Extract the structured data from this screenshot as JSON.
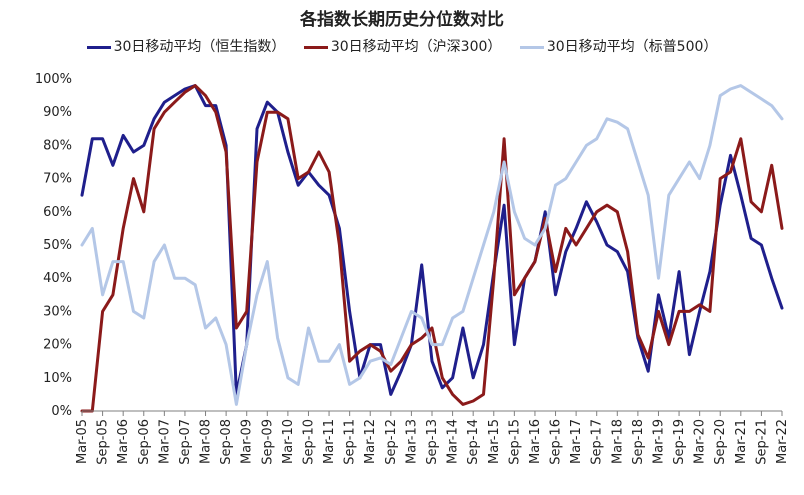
{
  "chart_data": {
    "type": "line",
    "title": "各指数长期历史分位数对比",
    "xlabel": "",
    "ylabel": "",
    "ylim": [
      0,
      100
    ],
    "y_ticks": [
      "0%",
      "10%",
      "20%",
      "30%",
      "40%",
      "50%",
      "60%",
      "70%",
      "80%",
      "90%",
      "100%"
    ],
    "x_tick_labels": [
      "Mar-05",
      "Sep-05",
      "Mar-06",
      "Sep-06",
      "Mar-07",
      "Sep-07",
      "Mar-08",
      "Sep-08",
      "Mar-09",
      "Sep-09",
      "Mar-10",
      "Sep-10",
      "Mar-11",
      "Sep-11",
      "Mar-12",
      "Sep-12",
      "Mar-13",
      "Sep-13",
      "Mar-14",
      "Sep-14",
      "Mar-15",
      "Sep-15",
      "Mar-16",
      "Sep-16",
      "Mar-17",
      "Sep-17",
      "Mar-18",
      "Sep-18",
      "Mar-19",
      "Sep-19",
      "Mar-20",
      "Sep-20",
      "Mar-21",
      "Sep-21",
      "Mar-22"
    ],
    "grid": false,
    "legend_position": "top",
    "x": [
      "2005-03",
      "2005-06",
      "2005-09",
      "2005-12",
      "2006-03",
      "2006-06",
      "2006-09",
      "2006-12",
      "2007-03",
      "2007-06",
      "2007-09",
      "2007-12",
      "2008-03",
      "2008-06",
      "2008-09",
      "2008-12",
      "2009-03",
      "2009-06",
      "2009-09",
      "2009-12",
      "2010-03",
      "2010-06",
      "2010-09",
      "2010-12",
      "2011-03",
      "2011-06",
      "2011-09",
      "2011-12",
      "2012-03",
      "2012-06",
      "2012-09",
      "2012-12",
      "2013-03",
      "2013-06",
      "2013-09",
      "2013-12",
      "2014-03",
      "2014-06",
      "2014-09",
      "2014-12",
      "2015-03",
      "2015-06",
      "2015-09",
      "2015-12",
      "2016-03",
      "2016-06",
      "2016-09",
      "2016-12",
      "2017-03",
      "2017-06",
      "2017-09",
      "2017-12",
      "2018-03",
      "2018-06",
      "2018-09",
      "2018-12",
      "2019-03",
      "2019-06",
      "2019-09",
      "2019-12",
      "2020-03",
      "2020-06",
      "2020-09",
      "2020-12",
      "2021-03",
      "2021-06",
      "2021-09",
      "2021-12",
      "2022-03"
    ],
    "series": [
      {
        "name": "30日移动平均（恒生指数）",
        "color": "#1f1f8c",
        "values": [
          65,
          82,
          82,
          74,
          83,
          78,
          80,
          88,
          93,
          95,
          97,
          98,
          92,
          92,
          80,
          5,
          20,
          85,
          93,
          90,
          78,
          68,
          72,
          68,
          65,
          55,
          30,
          10,
          20,
          20,
          5,
          12,
          20,
          44,
          15,
          7,
          10,
          25,
          10,
          20,
          42,
          62,
          20,
          40,
          45,
          60,
          35,
          48,
          55,
          63,
          57,
          50,
          48,
          42,
          22,
          12,
          35,
          22,
          42,
          17,
          30,
          42,
          62,
          77,
          65,
          52,
          50,
          40,
          31
        ],
        "stroke_width": 3
      },
      {
        "name": "30日移动平均（沪深300）",
        "color": "#8b1a1a",
        "values": [
          0,
          0,
          30,
          35,
          55,
          70,
          60,
          85,
          90,
          93,
          96,
          98,
          95,
          90,
          78,
          25,
          30,
          75,
          90,
          90,
          88,
          70,
          72,
          78,
          72,
          50,
          15,
          18,
          20,
          18,
          12,
          15,
          20,
          22,
          25,
          10,
          5,
          2,
          3,
          5,
          40,
          82,
          35,
          40,
          45,
          58,
          42,
          55,
          50,
          55,
          60,
          62,
          60,
          48,
          23,
          16,
          30,
          20,
          30,
          30,
          32,
          30,
          70,
          72,
          82,
          63,
          60,
          74,
          55
        ],
        "stroke_width": 3
      },
      {
        "name": "30日移动平均（标普500）",
        "color": "#b4c7e7",
        "values": [
          50,
          55,
          35,
          45,
          45,
          30,
          28,
          45,
          50,
          40,
          40,
          38,
          25,
          28,
          20,
          2,
          20,
          35,
          45,
          22,
          10,
          8,
          25,
          15,
          15,
          20,
          8,
          10,
          15,
          16,
          14,
          22,
          30,
          28,
          20,
          20,
          28,
          30,
          40,
          50,
          60,
          75,
          60,
          52,
          50,
          55,
          68,
          70,
          75,
          80,
          82,
          88,
          87,
          85,
          75,
          65,
          40,
          65,
          70,
          75,
          70,
          80,
          95,
          97,
          98,
          96,
          94,
          92,
          88
        ],
        "stroke_width": 3
      }
    ]
  }
}
